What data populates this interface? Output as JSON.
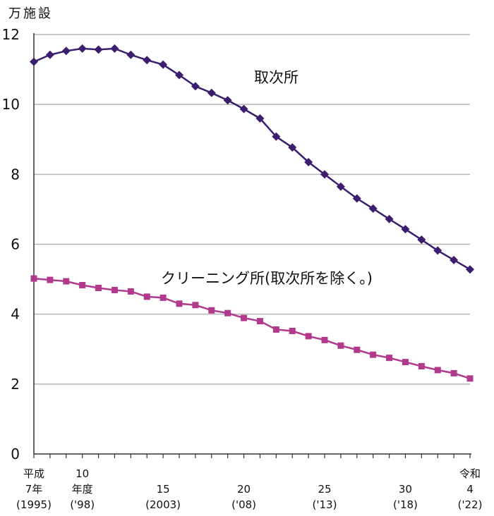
{
  "chart_data": {
    "type": "line",
    "unit": "万施設",
    "ylim": [
      0,
      12
    ],
    "yticks": [
      "0",
      "2",
      "4",
      "6",
      "8",
      "10",
      "12"
    ],
    "grid": true,
    "x": [
      1995,
      1996,
      1997,
      1998,
      1999,
      2000,
      2001,
      2002,
      2003,
      2004,
      2005,
      2006,
      2007,
      2008,
      2009,
      2010,
      2011,
      2012,
      2013,
      2014,
      2015,
      2016,
      2017,
      2018,
      2019,
      2020,
      2021,
      2022
    ],
    "x_tick_labels": [
      {
        "x": 1995,
        "lines": [
          "平成",
          "7年",
          "(1995)"
        ]
      },
      {
        "x": 1998,
        "lines": [
          "10",
          "年度",
          "('98)"
        ]
      },
      {
        "x": 2003,
        "lines": [
          "15",
          "(2003)"
        ]
      },
      {
        "x": 2008,
        "lines": [
          "20",
          "('08)"
        ]
      },
      {
        "x": 2013,
        "lines": [
          "25",
          "('13)"
        ]
      },
      {
        "x": 2018,
        "lines": [
          "30",
          "('18)"
        ]
      },
      {
        "x": 2022,
        "lines": [
          "令和",
          "4",
          "('22)"
        ]
      }
    ],
    "series": [
      {
        "name": "取次所",
        "color": "#3b1f6e",
        "marker": "diamond",
        "values": [
          11.22,
          11.42,
          11.53,
          11.6,
          11.57,
          11.6,
          11.42,
          11.27,
          11.14,
          10.84,
          10.52,
          10.33,
          10.12,
          9.87,
          9.6,
          9.08,
          8.77,
          8.35,
          8.0,
          7.65,
          7.31,
          7.02,
          6.72,
          6.43,
          6.13,
          5.82,
          5.55,
          5.28
        ]
      },
      {
        "name": "クリーニング所(取次所を除く。)",
        "color": "#b23a8c",
        "marker": "square",
        "values": [
          5.02,
          4.98,
          4.94,
          4.83,
          4.75,
          4.69,
          4.65,
          4.5,
          4.47,
          4.3,
          4.26,
          4.11,
          4.03,
          3.89,
          3.8,
          3.56,
          3.52,
          3.37,
          3.26,
          3.1,
          2.98,
          2.84,
          2.75,
          2.63,
          2.51,
          2.4,
          2.31,
          2.16
        ]
      }
    ]
  }
}
